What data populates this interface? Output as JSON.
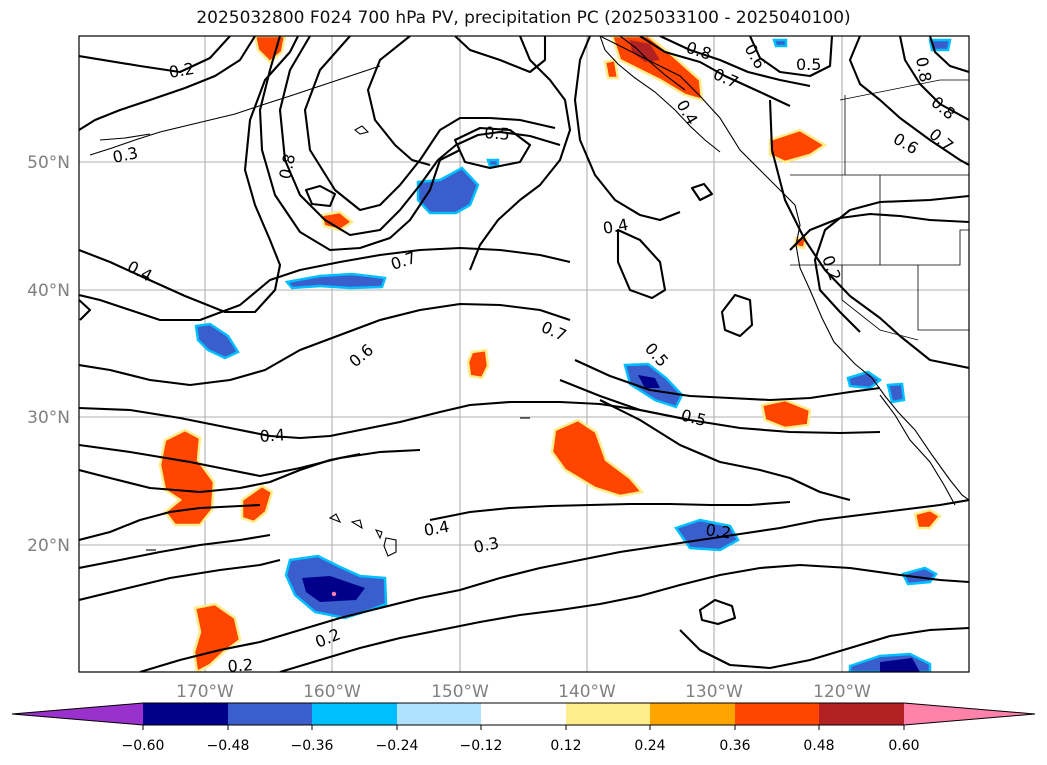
{
  "title": "2025032800 F024 700 hPa PV, precipitation PC (2025033100 - 2025040100)",
  "latitude_labels": [
    "50°N",
    "40°N",
    "30°N",
    "20°N"
  ],
  "longitude_labels": [
    "170°W",
    "160°W",
    "150°W",
    "140°W",
    "130°W",
    "120°W"
  ],
  "colorbar": {
    "tick_labels": [
      "−0.60",
      "−0.48",
      "−0.36",
      "−0.24",
      "−0.12",
      "0.12",
      "0.24",
      "0.36",
      "0.48",
      "0.60"
    ],
    "colors": [
      "#9932cc",
      "#00008b",
      "#3a5fcd",
      "#00bfff",
      "#b0e2ff",
      "#ffffff",
      "#ffec8b",
      "#ffa500",
      "#ff4500",
      "#b22222",
      "#ff82ab"
    ]
  },
  "contour_labels": [
    {
      "text": "0.2"
    },
    {
      "text": "0.3"
    },
    {
      "text": "0.4"
    },
    {
      "text": "0.8"
    },
    {
      "text": "0.7"
    },
    {
      "text": "0.6"
    },
    {
      "text": "0.5"
    },
    {
      "text": "0.4"
    },
    {
      "text": "0.7"
    },
    {
      "text": "0.5"
    },
    {
      "text": "0.5"
    },
    {
      "text": "0.4"
    },
    {
      "text": "0.4"
    },
    {
      "text": "0.3"
    },
    {
      "text": "0.2"
    },
    {
      "text": "0.2"
    },
    {
      "text": "0.2"
    },
    {
      "text": "0.8"
    },
    {
      "text": "0.7"
    },
    {
      "text": "0.5"
    },
    {
      "text": "0.6"
    },
    {
      "text": "0.8"
    },
    {
      "text": "0.7"
    },
    {
      "text": "0.6"
    },
    {
      "text": "0.2"
    },
    {
      "text": "0.4"
    },
    {
      "text": "0.8"
    }
  ]
}
